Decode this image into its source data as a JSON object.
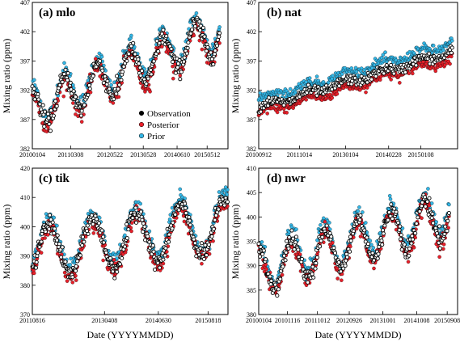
{
  "figure": {
    "ylabel": "Mixing ratio (ppm)",
    "xlabel": "Date (YYYYMMDD)"
  },
  "legend": {
    "location": "inside-panel-a-bottom-right",
    "entries": [
      {
        "label": "Observation",
        "color": "#000000"
      },
      {
        "label": "Posterior",
        "color": "#e8202a"
      },
      {
        "label": "Prior",
        "color": "#33b6e6"
      }
    ]
  },
  "colors": {
    "observation_edge": "#000000",
    "posterior_fill": "#e8202a",
    "prior_fill": "#33b6e6",
    "marker_edge": "#000000"
  },
  "chart_data": [
    {
      "type": "scatter",
      "title": "(a) mlo",
      "ylim": [
        382,
        407
      ],
      "yticks": [
        382,
        387,
        392,
        397,
        402,
        407
      ],
      "xrange": [
        "2010-01-04",
        "2015-12-31"
      ],
      "xtick_labels": [
        "20100104",
        "20110308",
        "20120522",
        "20130528",
        "20140610",
        "20150512"
      ],
      "trend": {
        "start": 388.7,
        "slope_per_year": 2.3
      },
      "seasonal_amplitude": 3.3,
      "series": [
        {
          "name": "Observation",
          "x_start": "2010-01-04",
          "step_days": 7,
          "count": 300,
          "offset": 0.0
        },
        {
          "name": "Posterior",
          "x_start": "2010-01-04",
          "step_days": 7,
          "count": 300,
          "offset": -0.6
        },
        {
          "name": "Prior",
          "x_start": "2010-01-04",
          "step_days": 7,
          "count": 300,
          "offset": 0.9
        }
      ]
    },
    {
      "type": "scatter",
      "title": "(b) nat",
      "ylim": [
        382,
        407
      ],
      "yticks": [
        382,
        387,
        392,
        397,
        402,
        407
      ],
      "xrange": [
        "2010-09-12",
        "2015-12-31"
      ],
      "xtick_labels": [
        "20100912",
        "20111014",
        "20130104",
        "20140228",
        "20150108"
      ],
      "trend": {
        "start": 389.0,
        "slope_per_year": 1.85
      },
      "seasonal_amplitude": 0.5,
      "series": [
        {
          "name": "Observation",
          "x_start": "2010-09-12",
          "step_days": 7,
          "count": 270,
          "offset": 0.0
        },
        {
          "name": "Posterior",
          "x_start": "2010-09-12",
          "step_days": 7,
          "count": 270,
          "offset": -1.0
        },
        {
          "name": "Prior",
          "x_start": "2010-09-12",
          "step_days": 7,
          "count": 270,
          "offset": 1.5
        }
      ]
    },
    {
      "type": "scatter",
      "title": "(c) tik",
      "ylim": [
        370,
        420
      ],
      "yticks": [
        370,
        380,
        390,
        400,
        410,
        420
      ],
      "xrange": [
        "2011-08-16",
        "2016-01-31"
      ],
      "xtick_labels": [
        "20110816",
        "20130408",
        "20140630",
        "20150818"
      ],
      "trend": {
        "start": 391.0,
        "slope_per_year": 2.1
      },
      "seasonal_amplitude": 9.0,
      "series": [
        {
          "name": "Observation",
          "x_start": "2011-08-16",
          "step_days": 5,
          "count": 330,
          "offset": 0.0
        },
        {
          "name": "Posterior",
          "x_start": "2011-08-16",
          "step_days": 5,
          "count": 330,
          "offset": -1.0
        },
        {
          "name": "Prior",
          "x_start": "2011-08-16",
          "step_days": 5,
          "count": 330,
          "offset": 2.0
        }
      ]
    },
    {
      "type": "scatter",
      "title": "(d) nwr",
      "ylim": [
        380,
        410
      ],
      "yticks": [
        380,
        385,
        390,
        395,
        400,
        405,
        410
      ],
      "xrange": [
        "2010-01-04",
        "2015-12-31"
      ],
      "xtick_labels": [
        "20100104",
        "20101116",
        "20111012",
        "20120926",
        "20131001",
        "20141008",
        "20150908"
      ],
      "trend": {
        "start": 389.0,
        "slope_per_year": 2.0
      },
      "seasonal_amplitude": 4.5,
      "series": [
        {
          "name": "Observation",
          "x_start": "2010-01-04",
          "step_days": 7,
          "count": 300,
          "offset": 0.0
        },
        {
          "name": "Posterior",
          "x_start": "2010-01-04",
          "step_days": 7,
          "count": 300,
          "offset": -0.8
        },
        {
          "name": "Prior",
          "x_start": "2010-01-04",
          "step_days": 7,
          "count": 300,
          "offset": 1.2
        }
      ]
    }
  ]
}
